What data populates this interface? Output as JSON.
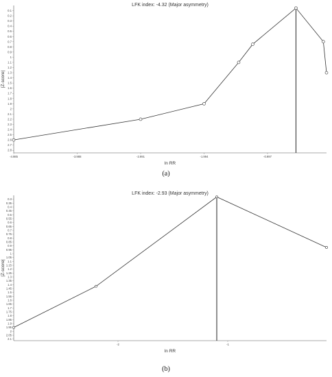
{
  "chart_data": [
    {
      "type": "line",
      "title": "LFK index: -4.32 (Major asymmetry)",
      "xlabel": "ln RR",
      "ylabel": "|Z-score|",
      "xlim": [
        -4.985,
        -0.07
      ],
      "ylim": [
        0,
        2.85
      ],
      "y_inverted": true,
      "yticks": [
        "0.1",
        "0.2",
        "0.3",
        "0.4",
        "0.5",
        "0.6",
        "0.7",
        "0.8",
        "0.9",
        "1",
        "1.1",
        "1.2",
        "1.3",
        "1.4",
        "1.5",
        "1.6",
        "1.7",
        "1.8",
        "1.9",
        "2",
        "2.1",
        "2.2",
        "2.3",
        "2.4",
        "2.5",
        "2.6",
        "2.7",
        "2.8"
      ],
      "xticks": [
        {
          "label": "-4.985",
          "value": -4.985
        },
        {
          "label": "-3.988",
          "value": -3.988
        },
        {
          "label": "-2.991",
          "value": -2.991
        },
        {
          "label": "-1.994",
          "value": -1.994
        },
        {
          "label": "-0.997",
          "value": -0.997
        }
      ],
      "x": [
        -4.985,
        -2.991,
        -1.994,
        -1.45,
        -1.23,
        -0.55,
        -0.12,
        -0.07
      ],
      "y": [
        2.6,
        2.2,
        1.9,
        1.1,
        0.75,
        0.05,
        0.7,
        1.3
      ],
      "reference_x": -0.55,
      "grid": false
    },
    {
      "type": "line",
      "title": "LFK index: -2.93 (Major asymmetry)",
      "xlabel": "ln RR",
      "ylabel": "|Z-score|",
      "xlim": [
        -2.95,
        -0.1
      ],
      "ylim": [
        0.25,
        2.12
      ],
      "y_inverted": true,
      "yticks": [
        "0.3",
        "0.35",
        "0.4",
        "0.45",
        "0.5",
        "0.55",
        "0.6",
        "0.65",
        "0.7",
        "0.75",
        "0.8",
        "0.85",
        "0.9",
        "0.95",
        "1",
        "1.05",
        "1.1",
        "1.15",
        "1.2",
        "1.25",
        "1.3",
        "1.35",
        "1.4",
        "1.45",
        "1.5",
        "1.55",
        "1.6",
        "1.65",
        "1.7",
        "1.75",
        "1.8",
        "1.85",
        "1.9",
        "1.95",
        "2",
        "2.05",
        "2.1"
      ],
      "xticks": [
        {
          "label": "-2",
          "value": -2
        },
        {
          "label": "-1",
          "value": -1
        }
      ],
      "x": [
        -2.95,
        -2.2,
        -1.1,
        -0.1
      ],
      "y": [
        1.95,
        1.42,
        0.27,
        0.92
      ],
      "reference_x": -1.1,
      "grid": false
    }
  ],
  "captions": [
    "(a)",
    "(b)"
  ]
}
